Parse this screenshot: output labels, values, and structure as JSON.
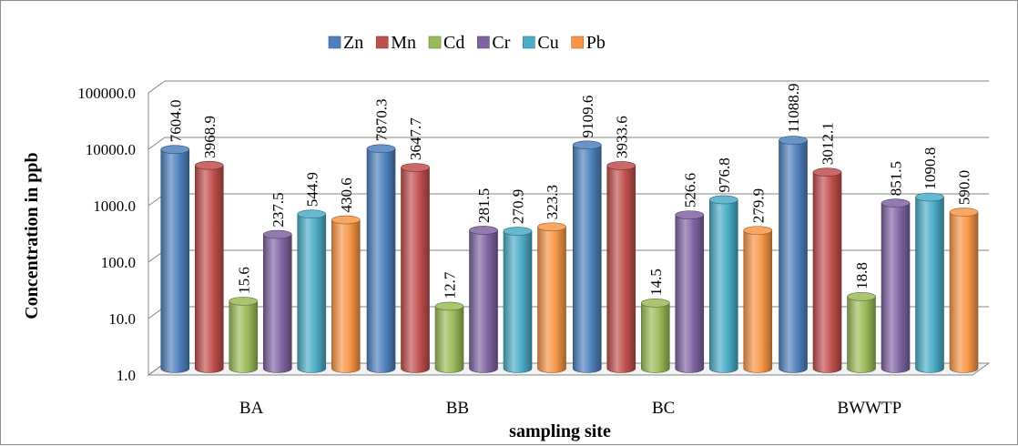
{
  "chart_data": {
    "type": "bar",
    "style": "3d-cylinder",
    "title": "",
    "xlabel": "sampling site",
    "ylabel": "Concentration in ppb",
    "yscale": "log",
    "ylim": [
      1,
      100000
    ],
    "yticks": [
      "1.0",
      "10.0",
      "100.0",
      "1000.0",
      "10000.0",
      "100000.0"
    ],
    "grid": true,
    "legend_position": "top",
    "categories": [
      "BA",
      "BB",
      "BC",
      "BWWTP"
    ],
    "series": [
      {
        "name": "Zn",
        "color": "#4f81bd",
        "values": [
          7604.0,
          7870.3,
          9109.6,
          11088.9
        ],
        "labels": [
          "7604.0",
          "7870.3",
          "9109.6",
          "11088.9"
        ]
      },
      {
        "name": "Mn",
        "color": "#c0504d",
        "values": [
          3968.9,
          3647.7,
          3933.6,
          3012.1
        ],
        "labels": [
          "3968.9",
          "3647.7",
          "3933.6",
          "3012.1"
        ]
      },
      {
        "name": "Cd",
        "color": "#9bbb59",
        "values": [
          15.6,
          12.7,
          14.5,
          18.8
        ],
        "labels": [
          "15.6",
          "12.7",
          "14.5",
          "18.8"
        ]
      },
      {
        "name": "Cr",
        "color": "#8064a2",
        "values": [
          237.5,
          281.5,
          526.6,
          851.5
        ],
        "labels": [
          "237.5",
          "281.5",
          "526.6",
          "851.5"
        ]
      },
      {
        "name": "Cu",
        "color": "#4bacc6",
        "values": [
          544.9,
          270.9,
          976.8,
          1090.8
        ],
        "labels": [
          "544.9",
          "270.9",
          "976.8",
          "1090.8"
        ]
      },
      {
        "name": "Pb",
        "color": "#f79646",
        "values": [
          430.6,
          323.3,
          279.9,
          590.0
        ],
        "labels": [
          "430.6",
          "323.3",
          "279.9",
          "590.0"
        ]
      }
    ]
  }
}
